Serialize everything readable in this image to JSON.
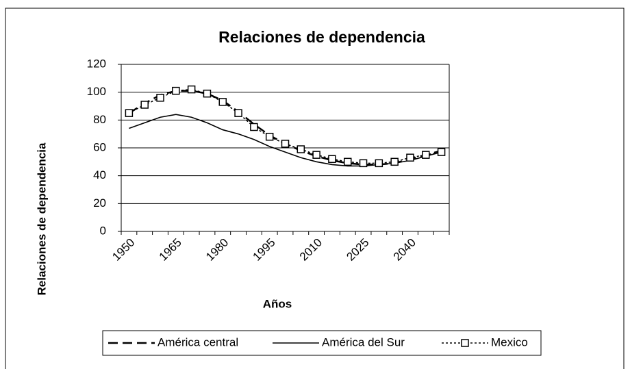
{
  "chart_data": {
    "type": "line",
    "title": "Relaciones de dependencia",
    "x_label": "Años",
    "y_label": "Relaciones de dependencia",
    "categories": [
      "1950",
      null,
      null,
      "1965",
      null,
      null,
      "1980",
      null,
      null,
      "1995",
      null,
      null,
      "2010",
      null,
      null,
      "2025",
      null,
      null,
      "2040",
      null,
      null
    ],
    "series": [
      {
        "name": "América central",
        "color": "#000000",
        "style": "dashed",
        "marker": "none",
        "values": [
          85,
          92,
          98,
          101,
          101,
          99,
          94,
          86,
          77,
          69,
          63,
          58,
          54,
          51,
          49,
          48,
          48,
          49,
          52,
          55,
          58
        ]
      },
      {
        "name": "América del Sur",
        "color": "#000000",
        "style": "solid",
        "marker": "none",
        "values": [
          74,
          78,
          82,
          84,
          82,
          78,
          73,
          70,
          66,
          61,
          57,
          53,
          50,
          48,
          47,
          47,
          48,
          49,
          51,
          54,
          57
        ]
      },
      {
        "name": "Mexico",
        "color": "#000000",
        "style": "dotted",
        "marker": "square",
        "values": [
          85,
          91,
          96,
          101,
          102,
          99,
          93,
          85,
          75,
          68,
          63,
          59,
          55,
          52,
          50,
          49,
          49,
          50,
          53,
          55,
          57
        ]
      }
    ],
    "ylim": [
      0,
      120
    ],
    "yticks": [
      0,
      20,
      40,
      60,
      80,
      100,
      120
    ],
    "grid": true,
    "legend": "bottom"
  }
}
